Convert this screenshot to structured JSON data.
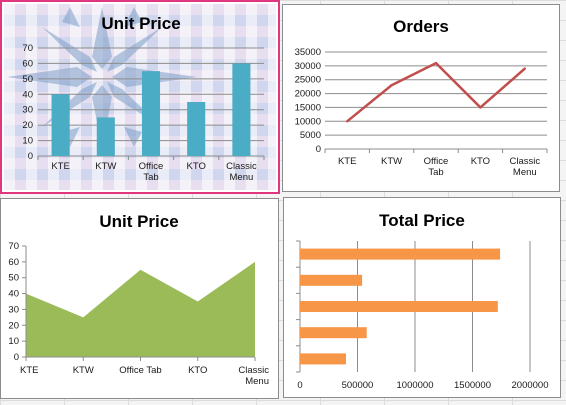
{
  "colors": {
    "bar_series": "#4bacc6",
    "line_series": "#c0504d",
    "area_series": "#9bbb59",
    "hbar_series": "#f79646",
    "selection_border": "#e0357f",
    "gridline": "#8c8c8c"
  },
  "chart_data": [
    {
      "type": "bar",
      "title": "Unit Price",
      "categories": [
        "KTE",
        "KTW",
        "Office Tab",
        "KTO",
        "Classic Menu"
      ],
      "category_lines": [
        [
          "KTE"
        ],
        [
          "KTW"
        ],
        [
          "Office",
          "Tab"
        ],
        [
          "KTO"
        ],
        [
          "Classic",
          "Menu"
        ]
      ],
      "values": [
        40,
        25,
        55,
        35,
        60
      ],
      "ylim": [
        0,
        70
      ],
      "yticks": [
        0,
        10,
        20,
        30,
        40,
        50,
        60,
        70
      ],
      "grid": true,
      "legend": "none",
      "selected": true,
      "background": "snowflake-picture"
    },
    {
      "type": "line",
      "title": "Orders",
      "categories": [
        "KTE",
        "KTW",
        "Office Tab",
        "KTO",
        "Classic Menu"
      ],
      "category_lines": [
        [
          "KTE"
        ],
        [
          "KTW"
        ],
        [
          "Office",
          "Tab"
        ],
        [
          "KTO"
        ],
        [
          "Classic",
          "Menu"
        ]
      ],
      "values": [
        10000,
        23000,
        31000,
        15000,
        29000
      ],
      "ylim": [
        0,
        35000
      ],
      "yticks": [
        0,
        5000,
        10000,
        15000,
        20000,
        25000,
        30000,
        35000
      ],
      "grid": true,
      "legend": "none"
    },
    {
      "type": "area",
      "title": "Unit Price",
      "categories": [
        "KTE",
        "KTW",
        "Office Tab",
        "KTO",
        "Classic Menu"
      ],
      "category_lines": [
        [
          "KTE"
        ],
        [
          "KTW"
        ],
        [
          "Office Tab"
        ],
        [
          "KTO"
        ],
        [
          "Classic",
          "Menu"
        ]
      ],
      "values": [
        40,
        25,
        55,
        35,
        60
      ],
      "ylim": [
        0,
        70
      ],
      "yticks": [
        0,
        10,
        20,
        30,
        40,
        50,
        60,
        70
      ],
      "grid": false,
      "legend": "none"
    },
    {
      "type": "bar",
      "orientation": "horizontal",
      "title": "Total Price",
      "values": [
        400000,
        580000,
        1720000,
        540000,
        1740000
      ],
      "xlim": [
        0,
        2000000
      ],
      "xticks": [
        0,
        500000,
        1000000,
        1500000,
        2000000
      ],
      "grid": true,
      "legend": "none"
    }
  ]
}
